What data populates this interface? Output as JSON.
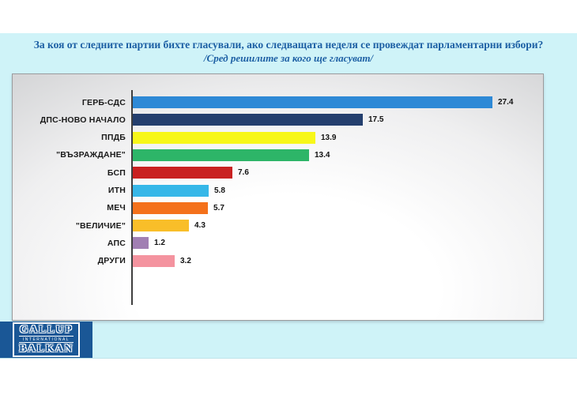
{
  "title": {
    "line1": "За коя от следните партии бихте  гласували,  ако следващата неделя се провеждат парламентарни избори?",
    "line2": "/Сред решилите за кого ще гласуват/"
  },
  "chart_data": {
    "type": "bar",
    "orientation": "horizontal",
    "title": "",
    "xlabel": "",
    "ylabel": "",
    "xlim": [
      0,
      28
    ],
    "grid": false,
    "legend": "none",
    "categories": [
      "ГЕРБ-СДС",
      "ДПС-НОВО НАЧАЛО",
      "ППДБ",
      "\"ВЪЗРАЖДАНЕ\"",
      "БСП",
      "ИТН",
      "МЕЧ",
      "\"ВЕЛИЧИЕ\"",
      "АПС",
      "ДРУГИ"
    ],
    "values": [
      27.4,
      17.5,
      13.9,
      13.4,
      7.6,
      5.8,
      5.7,
      4.3,
      1.2,
      3.2
    ],
    "bar_colors": [
      "#2e89d6",
      "#243f6e",
      "#f7f719",
      "#2db568",
      "#c92121",
      "#36b7e8",
      "#f4711b",
      "#f9be29",
      "#a17fb3",
      "#f4939f"
    ]
  },
  "logo": {
    "line1": "GALLUP",
    "line2": "INTERNATIONAL",
    "line3": "BALKAN",
    "background": "#1a5796"
  },
  "colors": {
    "band_background": "#cff3f8",
    "title_text": "#1c5fa4",
    "axis": "#3f3f3f"
  }
}
